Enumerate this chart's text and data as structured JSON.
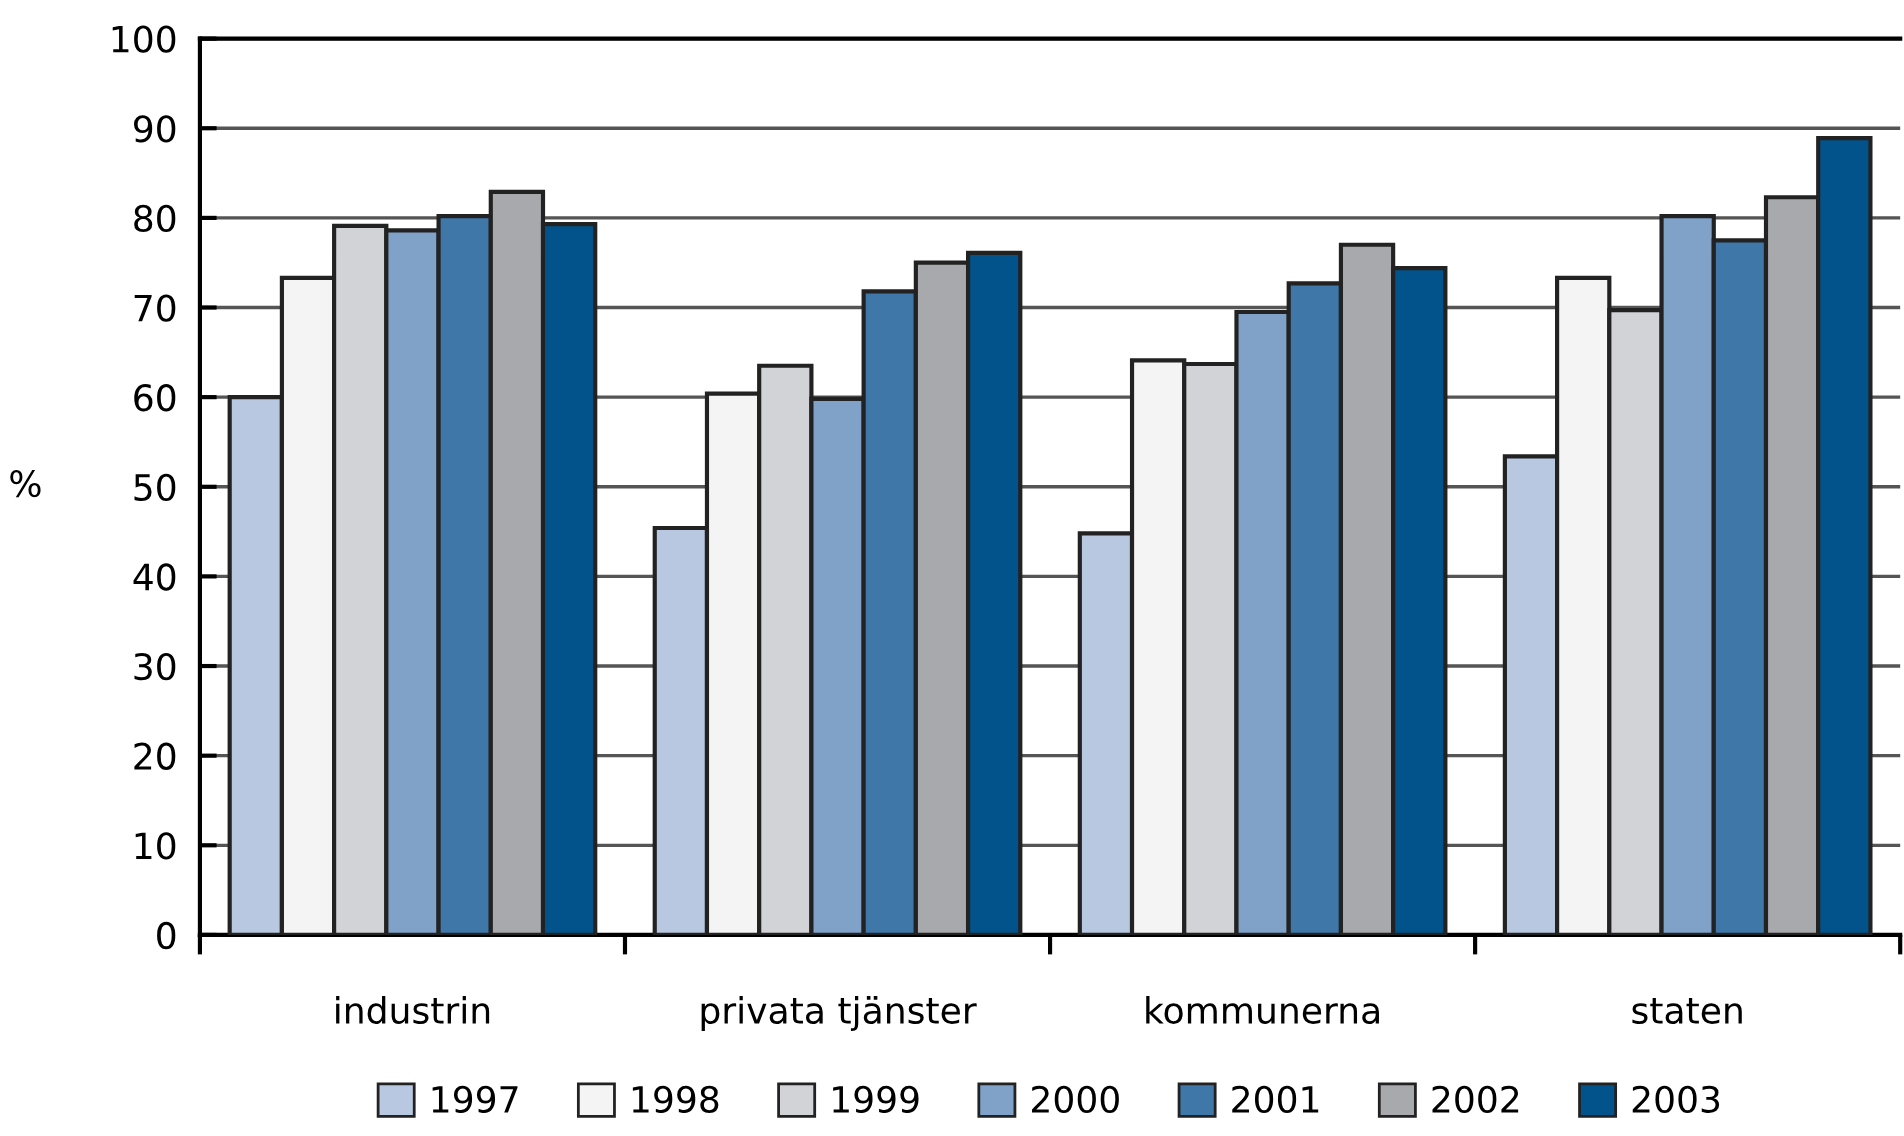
{
  "chart_data": {
    "type": "bar",
    "ylabel": "%",
    "categories": [
      "industrin",
      "privata tjänster",
      "kommunerna",
      "staten"
    ],
    "series": [
      {
        "name": "1997",
        "color": "#b8c8e0",
        "values": [
          60,
          45.4,
          44.8,
          53.4
        ]
      },
      {
        "name": "1998",
        "color": "#f4f4f4",
        "values": [
          73.3,
          60.4,
          64.1,
          73.3
        ]
      },
      {
        "name": "1999",
        "color": "#d1d3d6",
        "values": [
          79.1,
          63.5,
          63.7,
          69.7
        ]
      },
      {
        "name": "2000",
        "color": "#80a1c8",
        "values": [
          78.6,
          59.8,
          69.5,
          80.2
        ]
      },
      {
        "name": "2001",
        "color": "#3f77a9",
        "values": [
          80.2,
          71.8,
          72.7,
          77.5
        ]
      },
      {
        "name": "2002",
        "color": "#a8a9ad",
        "values": [
          82.9,
          75.0,
          77.0,
          82.3
        ]
      },
      {
        "name": "2003",
        "color": "#02538b",
        "values": [
          79.3,
          76.1,
          74.4,
          88.9
        ]
      }
    ],
    "ylim": [
      0,
      100
    ],
    "yticks": [
      0,
      10,
      20,
      30,
      40,
      50,
      60,
      70,
      80,
      90,
      100
    ],
    "grid": "y",
    "legend": "bottom"
  }
}
